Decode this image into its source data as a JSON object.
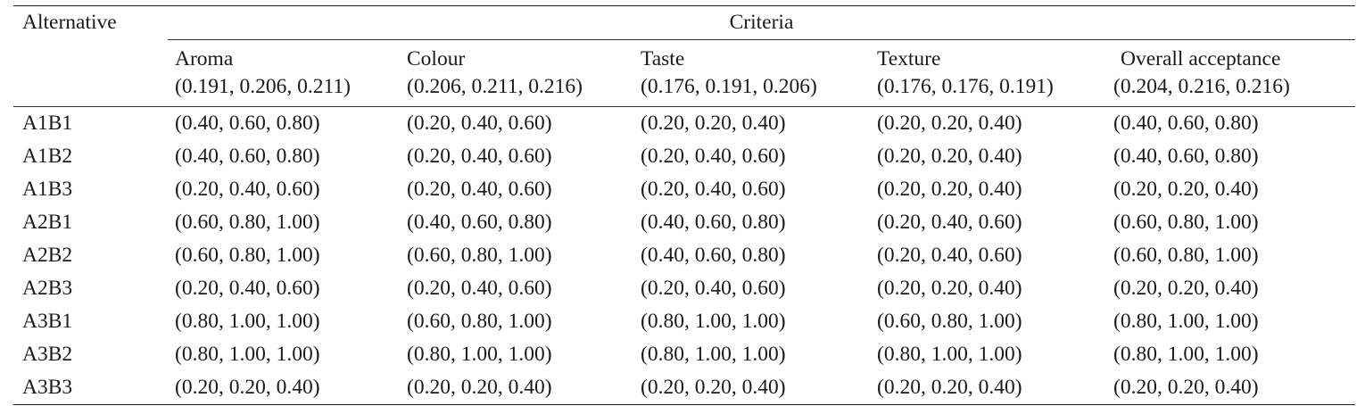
{
  "table": {
    "alternative_header": "Alternative",
    "criteria_header": "Criteria",
    "criteria": [
      {
        "name": "Aroma",
        "weight": "(0.191, 0.206, 0.211)"
      },
      {
        "name": "Colour",
        "weight": "(0.206, 0.211, 0.216)"
      },
      {
        "name": "Taste",
        "weight": "(0.176, 0.191, 0.206)"
      },
      {
        "name": "Texture",
        "weight": "(0.176, 0.176, 0.191)"
      },
      {
        "name": "Overall acceptance",
        "weight": "(0.204, 0.216, 0.216)"
      }
    ],
    "rows": [
      {
        "alternative": "A1B1",
        "values": [
          "(0.40, 0.60, 0.80)",
          "(0.20, 0.40, 0.60)",
          "(0.20, 0.20, 0.40)",
          "(0.20, 0.20, 0.40)",
          "(0.40, 0.60, 0.80)"
        ]
      },
      {
        "alternative": "A1B2",
        "values": [
          "(0.40, 0.60, 0.80)",
          "(0.20, 0.40, 0.60)",
          "(0.20, 0.40, 0.60)",
          "(0.20, 0.20, 0.40)",
          "(0.40, 0.60, 0.80)"
        ]
      },
      {
        "alternative": "A1B3",
        "values": [
          "(0.20, 0.40, 0.60)",
          "(0.20, 0.40, 0.60)",
          "(0.20, 0.40, 0.60)",
          "(0.20, 0.20, 0.40)",
          "(0.20, 0.20, 0.40)"
        ]
      },
      {
        "alternative": "A2B1",
        "values": [
          "(0.60, 0.80, 1.00)",
          "(0.40, 0.60, 0.80)",
          "(0.40, 0.60, 0.80)",
          "(0.20, 0.40, 0.60)",
          "(0.60, 0.80, 1.00)"
        ]
      },
      {
        "alternative": "A2B2",
        "values": [
          "(0.60, 0.80, 1.00)",
          "(0.60, 0.80, 1.00)",
          "(0.40, 0.60, 0.80)",
          "(0.20, 0.40, 0.60)",
          "(0.60, 0.80, 1.00)"
        ]
      },
      {
        "alternative": "A2B3",
        "values": [
          "(0.20, 0.40, 0.60)",
          "(0.20, 0.40, 0.60)",
          "(0.20, 0.40, 0.60)",
          "(0.20, 0.20, 0.40)",
          "(0.20, 0.20, 0.40)"
        ]
      },
      {
        "alternative": "A3B1",
        "values": [
          "(0.80, 1.00, 1.00)",
          "(0.60, 0.80, 1.00)",
          "(0.80, 1.00, 1.00)",
          "(0.60, 0.80, 1.00)",
          "(0.80, 1.00, 1.00)"
        ]
      },
      {
        "alternative": "A3B2",
        "values": [
          "(0.80, 1.00, 1.00)",
          "(0.80, 1.00, 1.00)",
          "(0.80, 1.00, 1.00)",
          "(0.80, 1.00, 1.00)",
          "(0.80, 1.00, 1.00)"
        ]
      },
      {
        "alternative": "A3B3",
        "values": [
          "(0.20, 0.20, 0.40)",
          "(0.20, 0.20, 0.40)",
          "(0.20, 0.20, 0.40)",
          "(0.20, 0.20, 0.40)",
          "(0.20, 0.20, 0.40)"
        ]
      }
    ]
  }
}
